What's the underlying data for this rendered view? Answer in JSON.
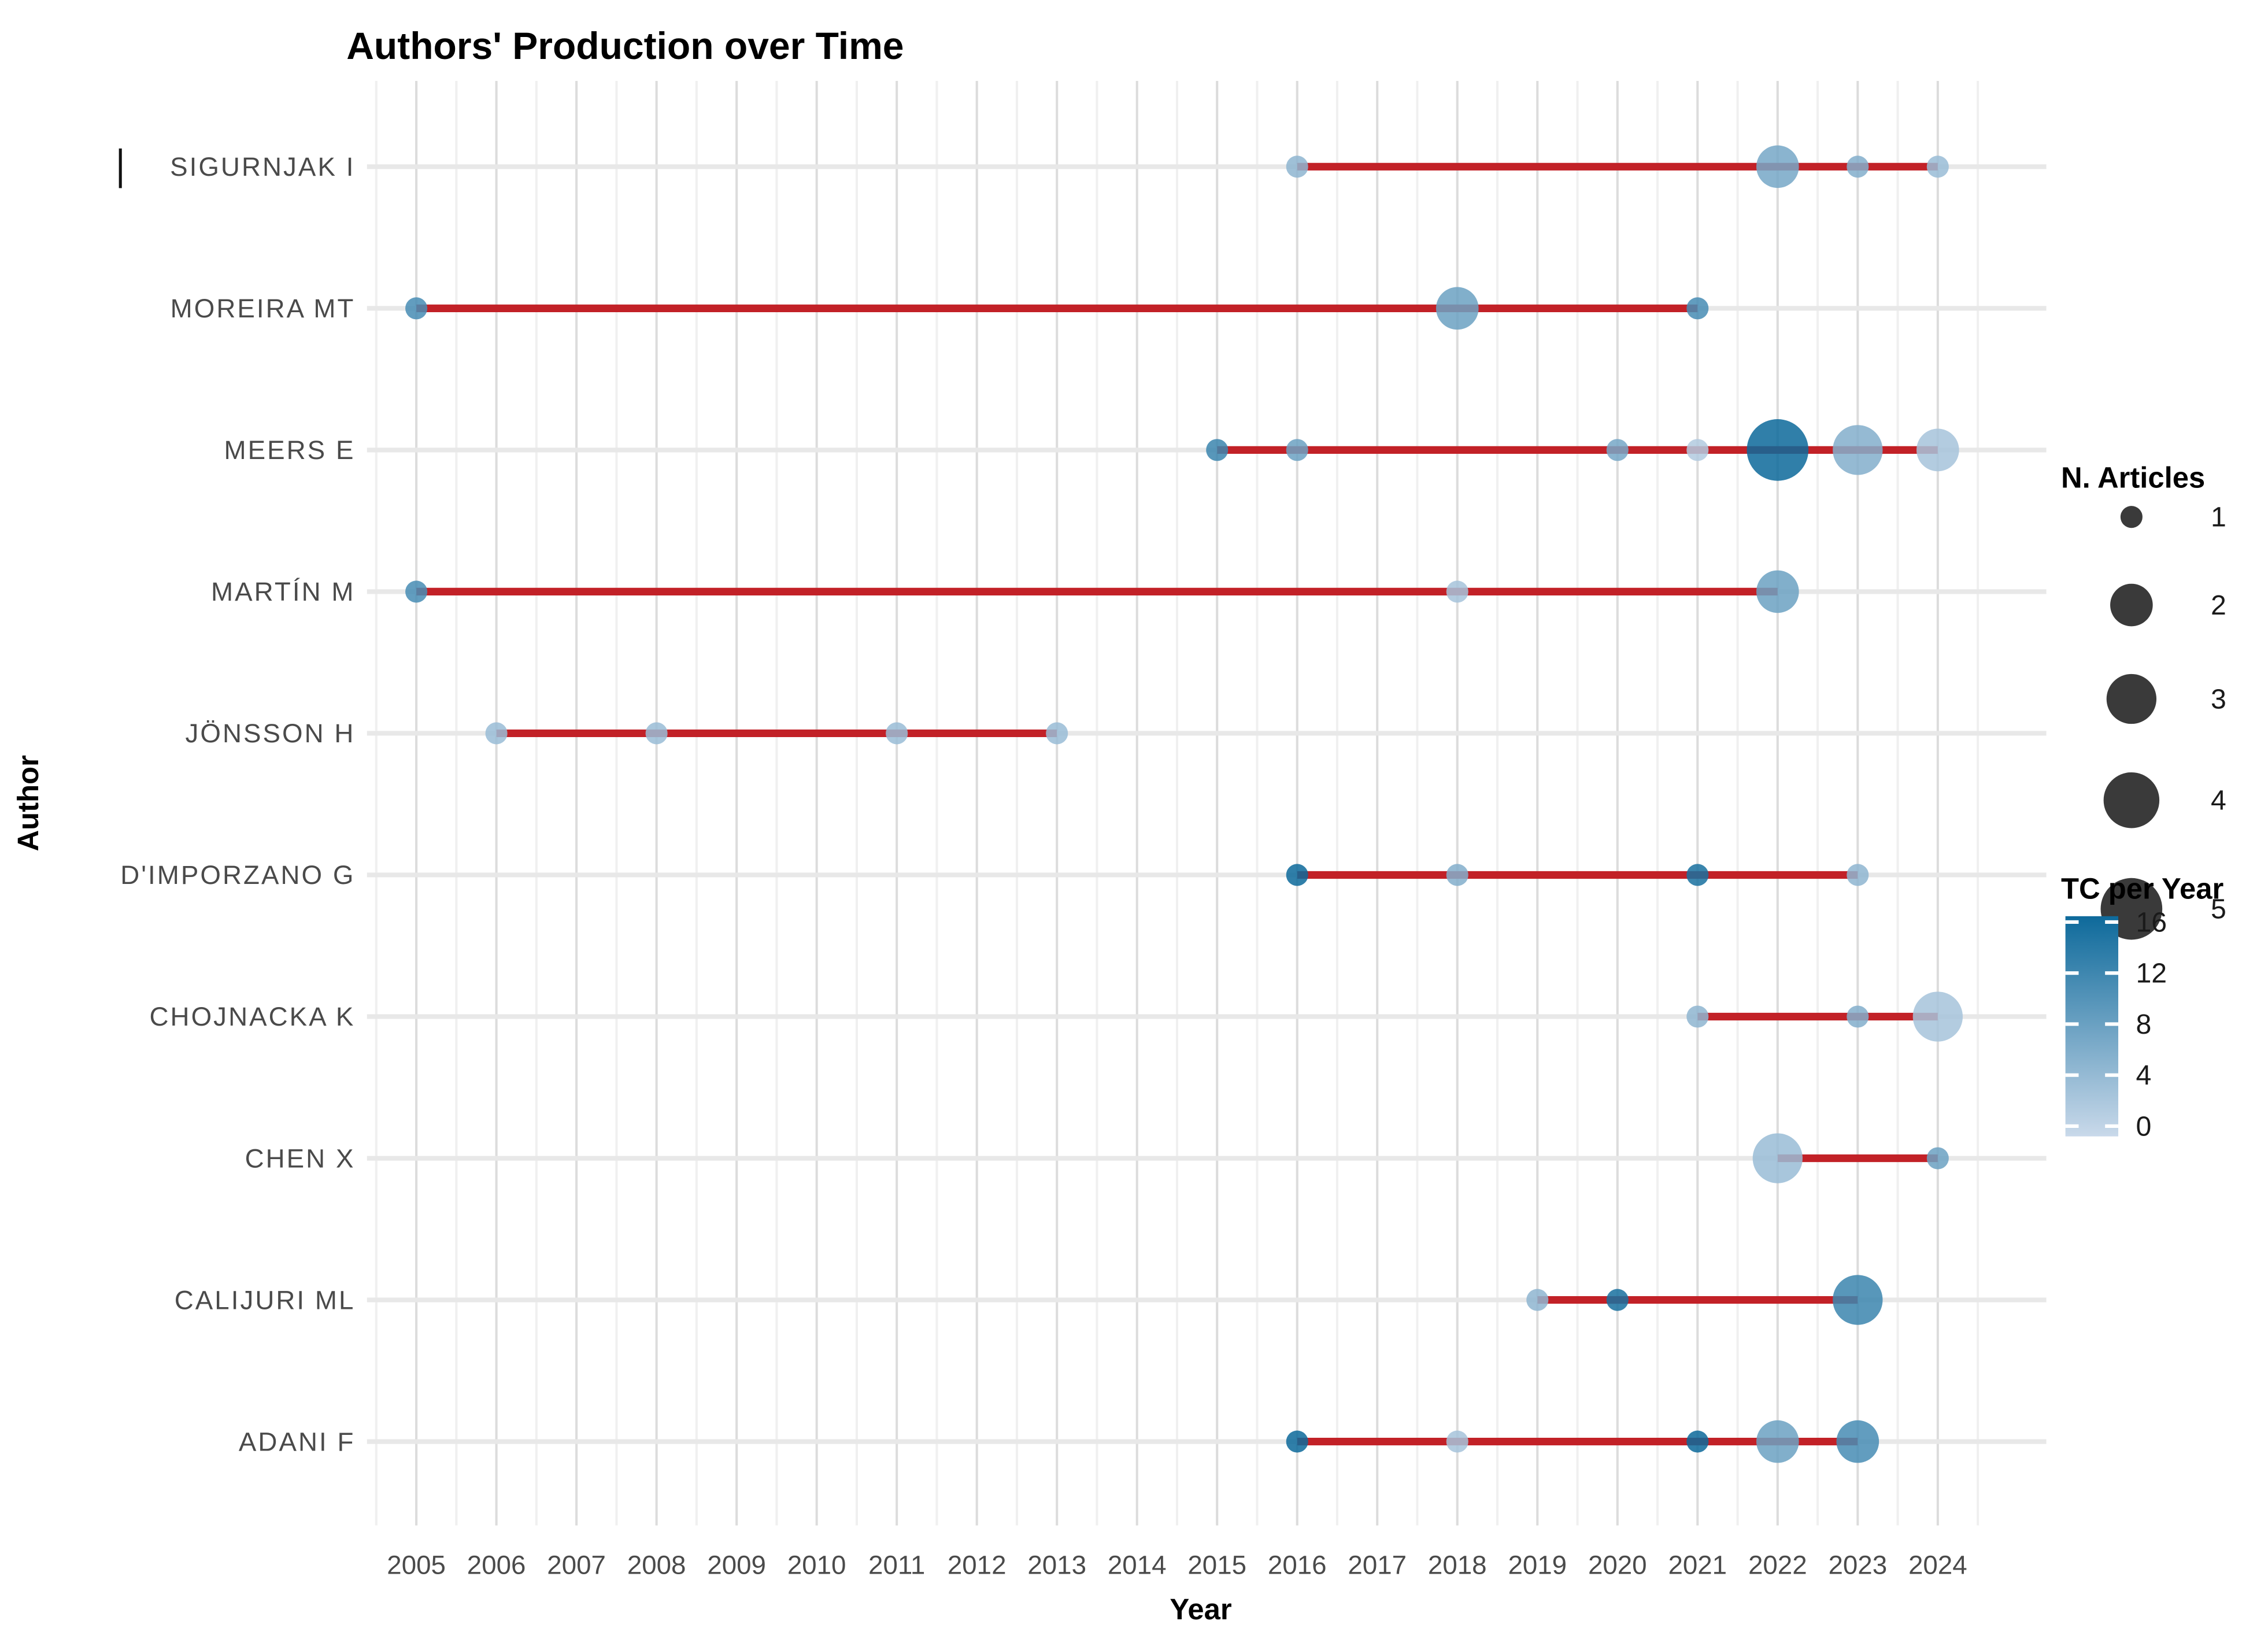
{
  "title": "Authors' Production over Time",
  "axes": {
    "x_label": "Year",
    "y_label": "Author"
  },
  "legend": {
    "size_title": "N. Articles",
    "size_values": [
      1,
      2,
      3,
      4,
      5
    ],
    "color_title": "TC per Year",
    "color_ticks": [
      16,
      12,
      8,
      4,
      0
    ],
    "color_low": "#c9d9ea",
    "color_high": "#0e6a9b"
  },
  "colors": {
    "timeline_red": "#c22127",
    "grid_major": "#dcdcdc",
    "grid_minor": "#f0f0f0",
    "grid_row": "#e8e8e8",
    "tick_text": "#4a4a4a",
    "title_text": "#000000",
    "legend_dot": "#3a3a3a"
  },
  "chart_data": {
    "type": "scatter",
    "subtype": "bubble-timeline",
    "x_range": [
      2005,
      2024
    ],
    "x_ticks": [
      2005,
      2006,
      2007,
      2008,
      2009,
      2010,
      2011,
      2012,
      2013,
      2014,
      2015,
      2016,
      2017,
      2018,
      2019,
      2020,
      2021,
      2022,
      2023,
      2024
    ],
    "size_range": [
      1,
      5
    ],
    "color_range": [
      0,
      16
    ],
    "grid": true,
    "legend_position": "right",
    "series": [
      {
        "author": "SIGURNJAK I",
        "line": [
          2016,
          2024
        ],
        "points": [
          {
            "year": 2016,
            "n_articles": 1,
            "tc_per_year": 5
          },
          {
            "year": 2022,
            "n_articles": 2,
            "tc_per_year": 7
          },
          {
            "year": 2023,
            "n_articles": 1,
            "tc_per_year": 6
          },
          {
            "year": 2024,
            "n_articles": 1,
            "tc_per_year": 4
          }
        ]
      },
      {
        "author": "MOREIRA MT",
        "line": [
          2005,
          2021
        ],
        "points": [
          {
            "year": 2005,
            "n_articles": 1,
            "tc_per_year": 11
          },
          {
            "year": 2018,
            "n_articles": 2,
            "tc_per_year": 8
          },
          {
            "year": 2021,
            "n_articles": 1,
            "tc_per_year": 11
          }
        ]
      },
      {
        "author": "MEERS E",
        "line": [
          2015,
          2024
        ],
        "points": [
          {
            "year": 2015,
            "n_articles": 1,
            "tc_per_year": 12
          },
          {
            "year": 2016,
            "n_articles": 1,
            "tc_per_year": 8
          },
          {
            "year": 2020,
            "n_articles": 1,
            "tc_per_year": 7
          },
          {
            "year": 2021,
            "n_articles": 1,
            "tc_per_year": 2
          },
          {
            "year": 2022,
            "n_articles": 5,
            "tc_per_year": 16
          },
          {
            "year": 2023,
            "n_articles": 3,
            "tc_per_year": 6
          },
          {
            "year": 2024,
            "n_articles": 2,
            "tc_per_year": 3
          }
        ]
      },
      {
        "author": "MARTÍN M",
        "line": [
          2005,
          2022
        ],
        "points": [
          {
            "year": 2005,
            "n_articles": 1,
            "tc_per_year": 11
          },
          {
            "year": 2018,
            "n_articles": 1,
            "tc_per_year": 3
          },
          {
            "year": 2022,
            "n_articles": 2,
            "tc_per_year": 8
          }
        ]
      },
      {
        "author": "JÖNSSON H",
        "line": [
          2006,
          2013
        ],
        "points": [
          {
            "year": 2006,
            "n_articles": 1,
            "tc_per_year": 4
          },
          {
            "year": 2008,
            "n_articles": 1,
            "tc_per_year": 4
          },
          {
            "year": 2011,
            "n_articles": 1,
            "tc_per_year": 4
          },
          {
            "year": 2013,
            "n_articles": 1,
            "tc_per_year": 4
          }
        ]
      },
      {
        "author": "D'IMPORZANO G",
        "line": [
          2016,
          2023
        ],
        "points": [
          {
            "year": 2016,
            "n_articles": 1,
            "tc_per_year": 16
          },
          {
            "year": 2018,
            "n_articles": 1,
            "tc_per_year": 6
          },
          {
            "year": 2021,
            "n_articles": 1,
            "tc_per_year": 15
          },
          {
            "year": 2023,
            "n_articles": 1,
            "tc_per_year": 5
          }
        ]
      },
      {
        "author": "CHOJNACKA K",
        "line": [
          2021,
          2024
        ],
        "points": [
          {
            "year": 2021,
            "n_articles": 1,
            "tc_per_year": 5
          },
          {
            "year": 2023,
            "n_articles": 1,
            "tc_per_year": 6
          },
          {
            "year": 2024,
            "n_articles": 3,
            "tc_per_year": 3
          }
        ]
      },
      {
        "author": "CHEN X",
        "line": [
          2022,
          2024
        ],
        "points": [
          {
            "year": 2022,
            "n_articles": 3,
            "tc_per_year": 4
          },
          {
            "year": 2024,
            "n_articles": 1,
            "tc_per_year": 8
          }
        ]
      },
      {
        "author": "CALIJURI ML",
        "line": [
          2019,
          2023
        ],
        "points": [
          {
            "year": 2019,
            "n_articles": 1,
            "tc_per_year": 5
          },
          {
            "year": 2020,
            "n_articles": 1,
            "tc_per_year": 15
          },
          {
            "year": 2023,
            "n_articles": 3,
            "tc_per_year": 12
          }
        ]
      },
      {
        "author": "ADANI F",
        "line": [
          2016,
          2023
        ],
        "points": [
          {
            "year": 2016,
            "n_articles": 1,
            "tc_per_year": 16
          },
          {
            "year": 2018,
            "n_articles": 1,
            "tc_per_year": 3
          },
          {
            "year": 2021,
            "n_articles": 1,
            "tc_per_year": 16
          },
          {
            "year": 2022,
            "n_articles": 2,
            "tc_per_year": 8
          },
          {
            "year": 2023,
            "n_articles": 2,
            "tc_per_year": 11
          }
        ]
      }
    ]
  }
}
